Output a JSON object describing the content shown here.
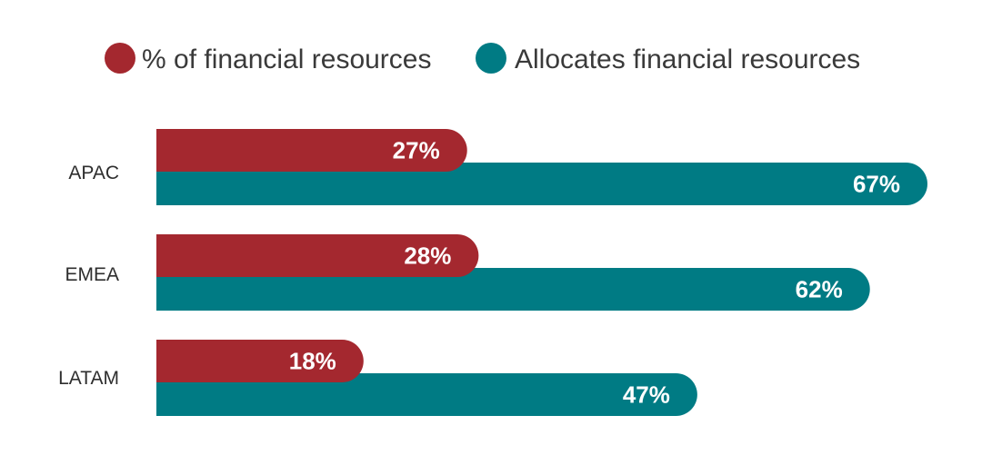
{
  "chart_data": {
    "type": "bar",
    "orientation": "horizontal",
    "categories": [
      "APAC",
      "EMEA",
      "LATAM"
    ],
    "series": [
      {
        "name": "% of financial resources",
        "values": [
          27,
          28,
          18
        ],
        "labels": [
          "27%",
          "28%",
          "18%"
        ],
        "color": "#a4282f"
      },
      {
        "name": "Allocates financial resources",
        "values": [
          67,
          62,
          47
        ],
        "labels": [
          "67%",
          "62%",
          "47%"
        ],
        "color": "#007b84"
      }
    ],
    "legend_position": "top",
    "xlim": [
      0,
      67
    ],
    "grid": false,
    "title": "",
    "xlabel": "",
    "ylabel": ""
  }
}
